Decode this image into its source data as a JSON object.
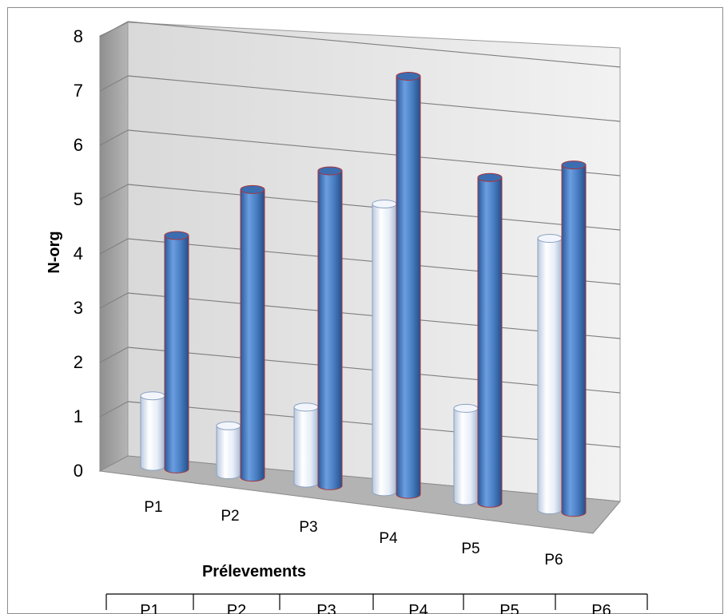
{
  "chart_data": {
    "type": "bar",
    "title": "",
    "xlabel": "Prélevements",
    "ylabel": "N-org",
    "ylim": [
      0,
      8
    ],
    "yticks": [
      "0",
      "1",
      "2",
      "3",
      "4",
      "5",
      "6",
      "7",
      "8"
    ],
    "categories": [
      "P1",
      "P2",
      "P3",
      "P4",
      "P5",
      "P6"
    ],
    "series": [
      {
        "values": [
          1.3,
          0.9,
          1.4,
          5.3,
          1.7,
          5.0
        ],
        "color": "#dce6f5"
      },
      {
        "values": [
          4.3,
          5.3,
          5.8,
          7.7,
          6.0,
          6.4
        ],
        "color": "#4a7fc4"
      }
    ],
    "grid": true,
    "style": "3d-cylinder",
    "data_table_header": [
      "P1",
      "P2",
      "P3",
      "P4",
      "P5",
      "P6"
    ]
  }
}
